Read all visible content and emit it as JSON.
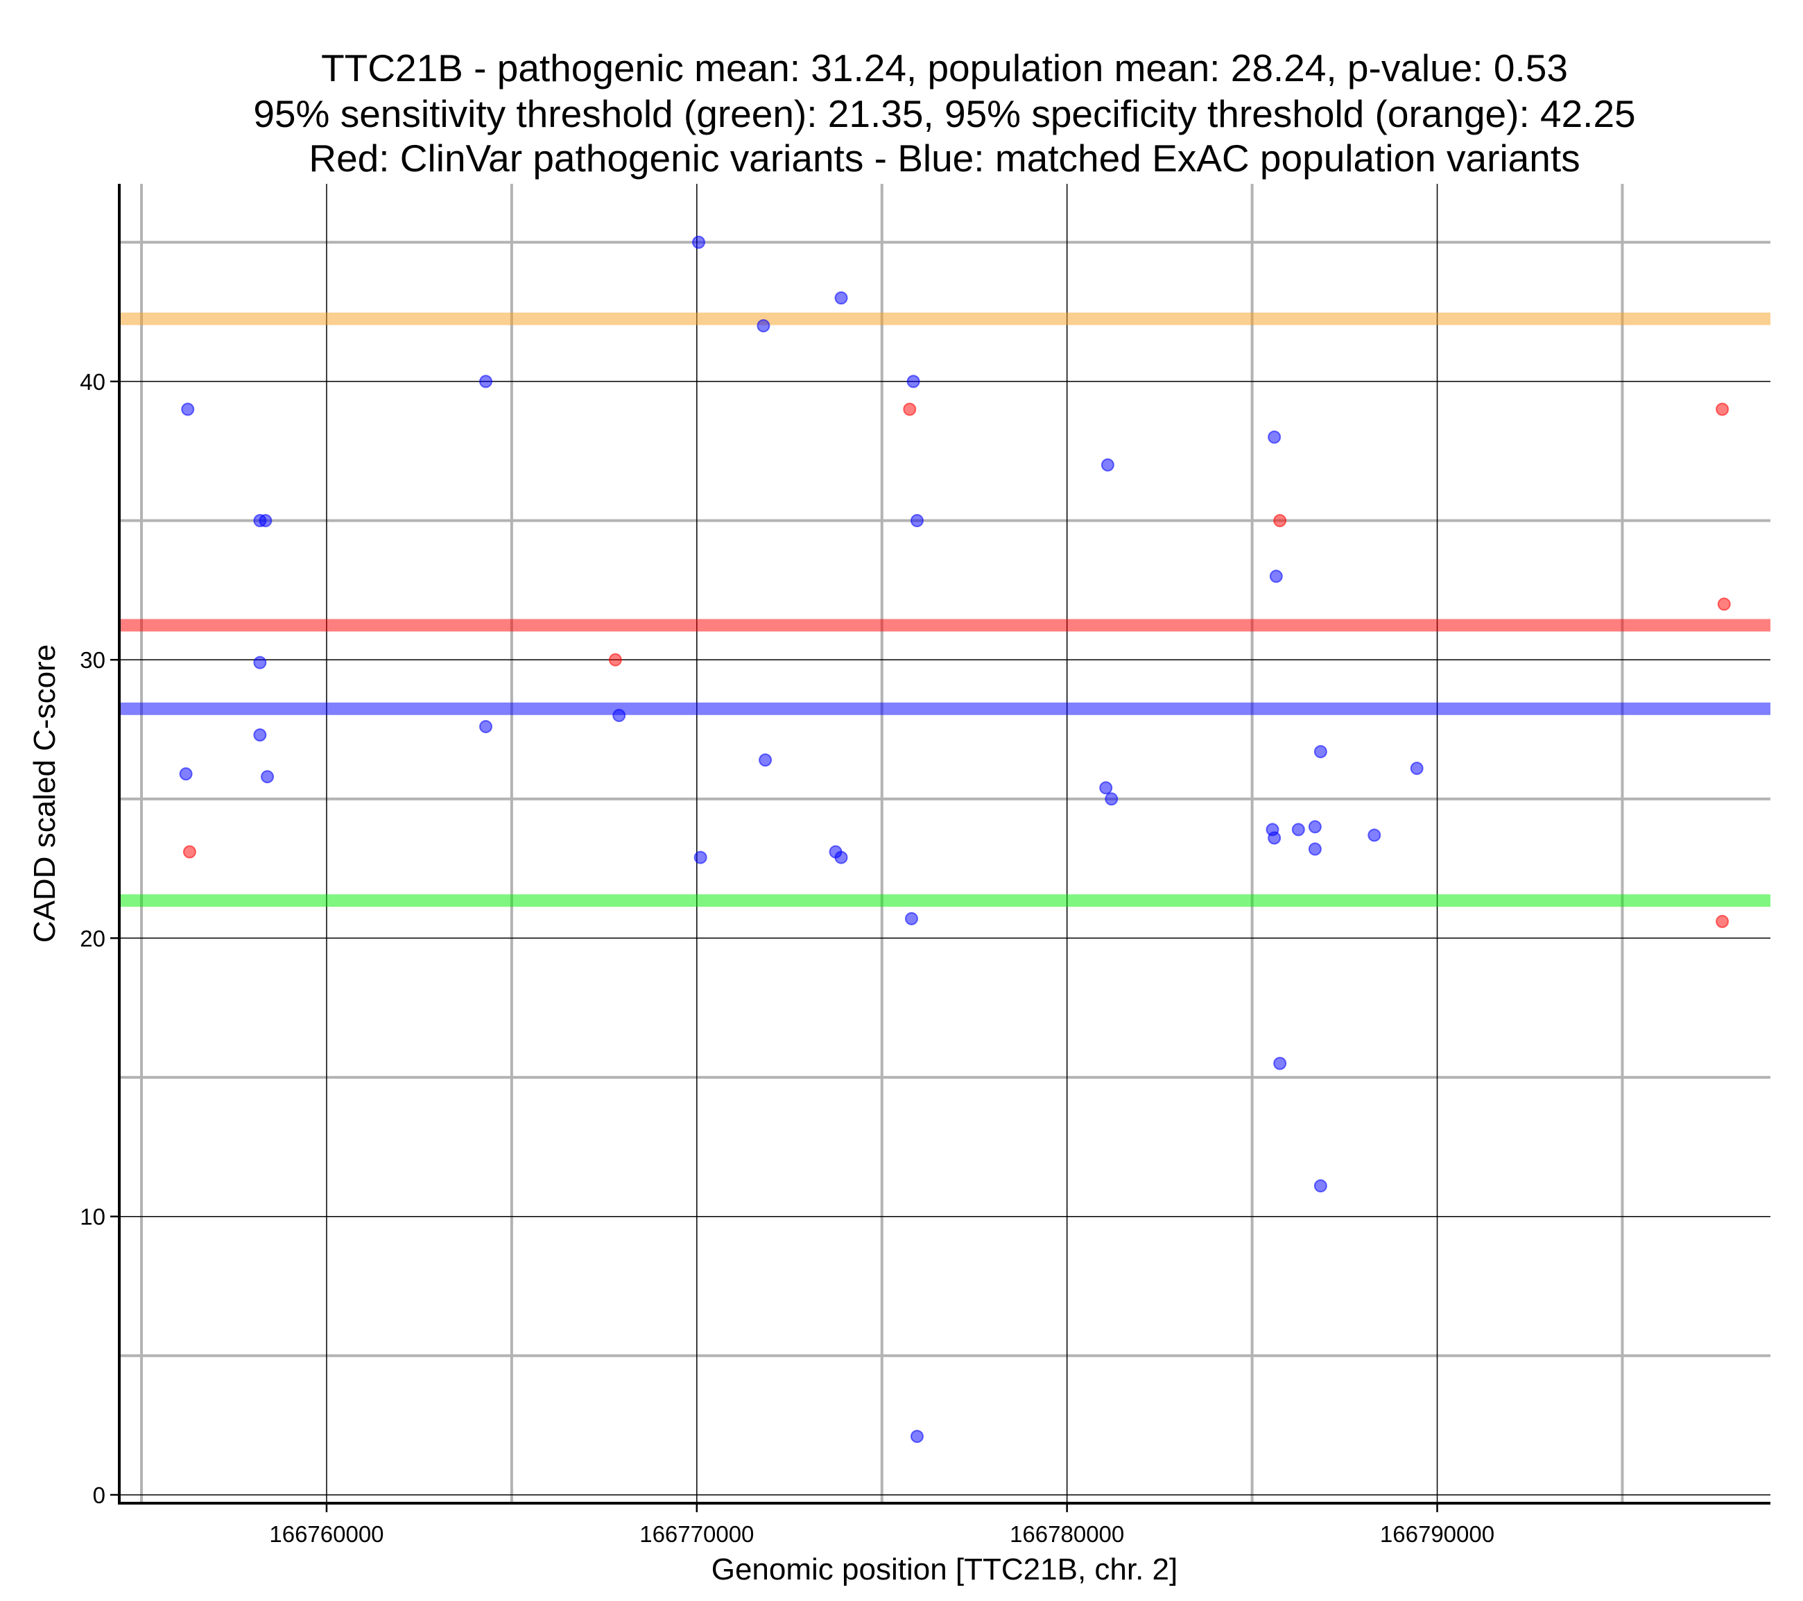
{
  "chart_data": {
    "type": "scatter",
    "title_lines": [
      "TTC21B - pathogenic mean: 31.24, population mean: 28.24, p-value: 0.53",
      "95% sensitivity threshold (green): 21.35, 95% specificity threshold (orange): 42.25",
      "Red: ClinVar pathogenic variants - Blue: matched ExAC population variants"
    ],
    "xlabel": "Genomic position [TTC21B, chr. 2]",
    "ylabel": "CADD scaled C-score",
    "xlim": [
      166754400,
      166799000
    ],
    "ylim": [
      -0.3,
      47.1
    ],
    "x_ticks": [
      166760000,
      166770000,
      166780000,
      166790000
    ],
    "x_tick_labels": [
      "166760000",
      "166770000",
      "166780000",
      "166790000"
    ],
    "y_ticks": [
      0,
      10,
      20,
      30,
      40
    ],
    "y_tick_labels": [
      "0",
      "10",
      "20",
      "30",
      "40"
    ],
    "x_minor_grid": [
      166755000,
      166765000,
      166775000,
      166785000,
      166795000
    ],
    "y_minor_grid": [
      5,
      15,
      25,
      35,
      45
    ],
    "grid": true,
    "colors": {
      "pathogenic": "#ff0000",
      "population": "#0000ff",
      "sensitivity": "#00ee00",
      "specificity": "#f5a020",
      "pathogenic_mean": "#ff0000",
      "population_mean": "#0000ff"
    },
    "hlines": [
      {
        "name": "specificity-threshold",
        "y": 42.25,
        "color": "#f5a020"
      },
      {
        "name": "pathogenic-mean",
        "y": 31.24,
        "color": "#ff0000"
      },
      {
        "name": "population-mean",
        "y": 28.24,
        "color": "#0000ff"
      },
      {
        "name": "sensitivity-threshold",
        "y": 21.35,
        "color": "#00ee00"
      }
    ],
    "series": [
      {
        "name": "ClinVar pathogenic variants",
        "color": "#ff0000",
        "points": [
          [
            166767800,
            30.0
          ],
          [
            166775750,
            39.0
          ],
          [
            166785750,
            35.0
          ],
          [
            166756300,
            23.1
          ],
          [
            166797700,
            39.0
          ],
          [
            166797750,
            32.0
          ],
          [
            166797700,
            20.6
          ]
        ]
      },
      {
        "name": "matched ExAC population variants",
        "color": "#0000ff",
        "points": [
          [
            166756250,
            39.0
          ],
          [
            166758200,
            35.0
          ],
          [
            166758350,
            35.0
          ],
          [
            166758200,
            29.9
          ],
          [
            166758200,
            27.3
          ],
          [
            166758400,
            25.8
          ],
          [
            166756200,
            25.9
          ],
          [
            166764300,
            40.0
          ],
          [
            166764300,
            27.6
          ],
          [
            166767900,
            28.0
          ],
          [
            166770050,
            45.0
          ],
          [
            166771800,
            42.0
          ],
          [
            166771850,
            26.4
          ],
          [
            166773900,
            43.0
          ],
          [
            166770100,
            22.9
          ],
          [
            166773750,
            23.1
          ],
          [
            166773900,
            22.9
          ],
          [
            166775850,
            40.0
          ],
          [
            166775950,
            35.0
          ],
          [
            166775800,
            20.7
          ],
          [
            166775950,
            2.1
          ],
          [
            166781100,
            37.0
          ],
          [
            166781050,
            25.4
          ],
          [
            166781200,
            25.0
          ],
          [
            166785600,
            38.0
          ],
          [
            166785650,
            33.0
          ],
          [
            166785550,
            23.9
          ],
          [
            166785600,
            23.6
          ],
          [
            166786250,
            23.9
          ],
          [
            166786700,
            24.0
          ],
          [
            166786700,
            23.2
          ],
          [
            166786850,
            26.7
          ],
          [
            166788300,
            23.7
          ],
          [
            166789450,
            26.1
          ],
          [
            166785750,
            15.5
          ],
          [
            166786850,
            11.1
          ]
        ]
      }
    ]
  }
}
